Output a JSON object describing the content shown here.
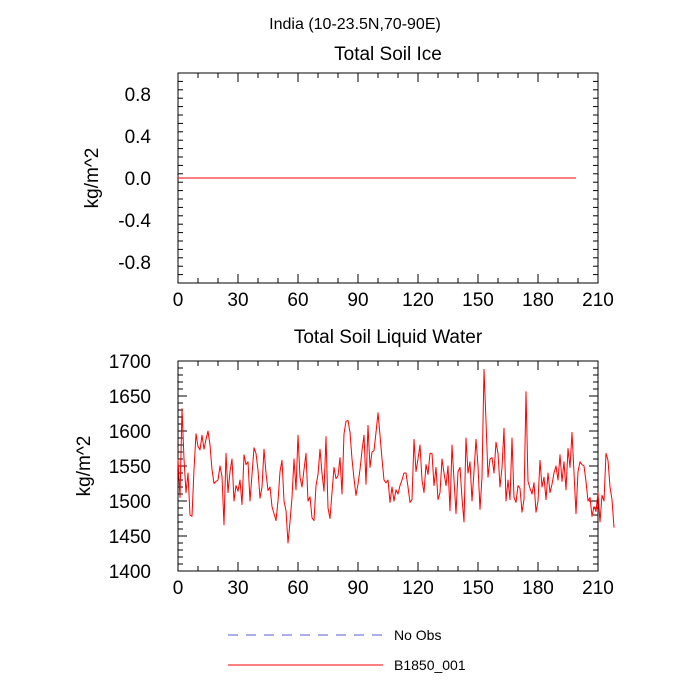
{
  "figure": {
    "title": "India (10-23.5N,70-90E)"
  },
  "chart_data": [
    {
      "type": "line",
      "title": "Total Soil Ice",
      "xlabel": "",
      "ylabel": "kg/m^2",
      "xlim": [
        0,
        210
      ],
      "ylim": [
        -1.0,
        1.0
      ],
      "xticks": [
        0,
        30,
        60,
        90,
        120,
        150,
        180,
        210
      ],
      "yticks": [
        -0.8,
        -0.4,
        0.0,
        0.4,
        0.8
      ],
      "ytick_labels": [
        "-0.8",
        "-0.4",
        "0.0",
        "0.4",
        "0.8"
      ],
      "series": [
        {
          "name": "B1850_001",
          "color": "#ff0000",
          "x_start": 0,
          "x_step": 1,
          "values": [
            0,
            0,
            0,
            0,
            0,
            0,
            0,
            0,
            0,
            0,
            0,
            0,
            0,
            0,
            0,
            0,
            0,
            0,
            0,
            0,
            0,
            0,
            0,
            0,
            0,
            0,
            0,
            0,
            0,
            0,
            0,
            0,
            0,
            0,
            0,
            0,
            0,
            0,
            0,
            0,
            0,
            0,
            0,
            0,
            0,
            0,
            0,
            0,
            0,
            0,
            0,
            0,
            0,
            0,
            0,
            0,
            0,
            0,
            0,
            0,
            0,
            0,
            0,
            0,
            0,
            0,
            0,
            0,
            0,
            0,
            0,
            0,
            0,
            0,
            0,
            0,
            0,
            0,
            0,
            0,
            0,
            0,
            0,
            0,
            0,
            0,
            0,
            0,
            0,
            0,
            0,
            0,
            0,
            0,
            0,
            0,
            0,
            0,
            0,
            0,
            0,
            0,
            0,
            0,
            0,
            0,
            0,
            0,
            0,
            0,
            0,
            0,
            0,
            0,
            0,
            0,
            0,
            0,
            0,
            0,
            0,
            0,
            0,
            0,
            0,
            0,
            0,
            0,
            0,
            0,
            0,
            0,
            0,
            0,
            0,
            0,
            0,
            0,
            0,
            0,
            0,
            0,
            0,
            0,
            0,
            0,
            0,
            0,
            0,
            0,
            0,
            0,
            0,
            0,
            0,
            0,
            0,
            0,
            0,
            0,
            0,
            0,
            0,
            0,
            0,
            0,
            0,
            0,
            0,
            0,
            0,
            0,
            0,
            0,
            0,
            0,
            0,
            0,
            0,
            0,
            0,
            0,
            0,
            0,
            0,
            0,
            0,
            0,
            0,
            0,
            0,
            0,
            0,
            0,
            0,
            0,
            0,
            0,
            0,
            0
          ]
        }
      ]
    },
    {
      "type": "line",
      "title": "Total Soil Liquid Water",
      "xlabel": "",
      "ylabel": "kg/m^2",
      "xlim": [
        0,
        210
      ],
      "ylim": [
        1400,
        1700
      ],
      "xticks": [
        0,
        30,
        60,
        90,
        120,
        150,
        180,
        210
      ],
      "yticks": [
        1400,
        1450,
        1500,
        1550,
        1600,
        1650,
        1700
      ],
      "ytick_labels": [
        "1400",
        "1450",
        "1500",
        "1550",
        "1600",
        "1650",
        "1700"
      ],
      "series": [
        {
          "name": "B1850_001",
          "color": "#ff0000",
          "x_start": 0,
          "x_step": 1,
          "values": [
            1560,
            1505,
            1632,
            1560,
            1512,
            1540,
            1480,
            1478,
            1545,
            1596,
            1578,
            1573,
            1594,
            1574,
            1588,
            1600,
            1580,
            1545,
            1525,
            1528,
            1530,
            1550,
            1535,
            1466,
            1568,
            1512,
            1542,
            1560,
            1500,
            1522,
            1514,
            1530,
            1495,
            1566,
            1552,
            1556,
            1500,
            1538,
            1576,
            1568,
            1544,
            1504,
            1520,
            1574,
            1540,
            1515,
            1520,
            1492,
            1482,
            1472,
            1500,
            1542,
            1558,
            1500,
            1486,
            1440,
            1470,
            1505,
            1560,
            1516,
            1594,
            1534,
            1520,
            1545,
            1568,
            1500,
            1506,
            1476,
            1472,
            1522,
            1538,
            1574,
            1540,
            1514,
            1592,
            1490,
            1475,
            1512,
            1548,
            1532,
            1536,
            1562,
            1510,
            1596,
            1614,
            1615,
            1598,
            1560,
            1532,
            1508,
            1524,
            1545,
            1572,
            1594,
            1524,
            1608,
            1548,
            1570,
            1572,
            1598,
            1626,
            1594,
            1560,
            1530,
            1526,
            1530,
            1498,
            1520,
            1500,
            1516,
            1510,
            1522,
            1530,
            1540,
            1540,
            1520,
            1498,
            1502,
            1588,
            1542,
            1560,
            1580,
            1530,
            1512,
            1552,
            1538,
            1568,
            1568,
            1522,
            1548,
            1502,
            1512,
            1560,
            1540,
            1522,
            1550,
            1486,
            1580,
            1530,
            1482,
            1542,
            1548,
            1504,
            1470,
            1590,
            1540,
            1556,
            1500,
            1542,
            1588,
            1550,
            1488,
            1534,
            1688,
            1614,
            1534,
            1560,
            1562,
            1540,
            1584,
            1568,
            1520,
            1548,
            1604,
            1500,
            1530,
            1502,
            1590,
            1505,
            1498,
            1522,
            1518,
            1484,
            1502,
            1656,
            1528,
            1518,
            1510,
            1526,
            1484,
            1500,
            1558,
            1520,
            1534,
            1502,
            1540,
            1512,
            1524,
            1540,
            1550,
            1530,
            1566,
            1528,
            1556,
            1516,
            1575,
            1548,
            1598,
            1540,
            1482,
            1542,
            1556,
            1552,
            1550,
            1528,
            1500,
            1505,
            1478,
            1492,
            1485,
            1512,
            1470,
            1508,
            1500,
            1568,
            1558,
            1520,
            1502,
            1462
          ]
        }
      ]
    }
  ],
  "legend": [
    {
      "label": "No Obs",
      "color": "#5b5bd6",
      "style": "dashed"
    },
    {
      "label": "B1850_001",
      "color": "#ff0000",
      "style": "solid"
    }
  ]
}
